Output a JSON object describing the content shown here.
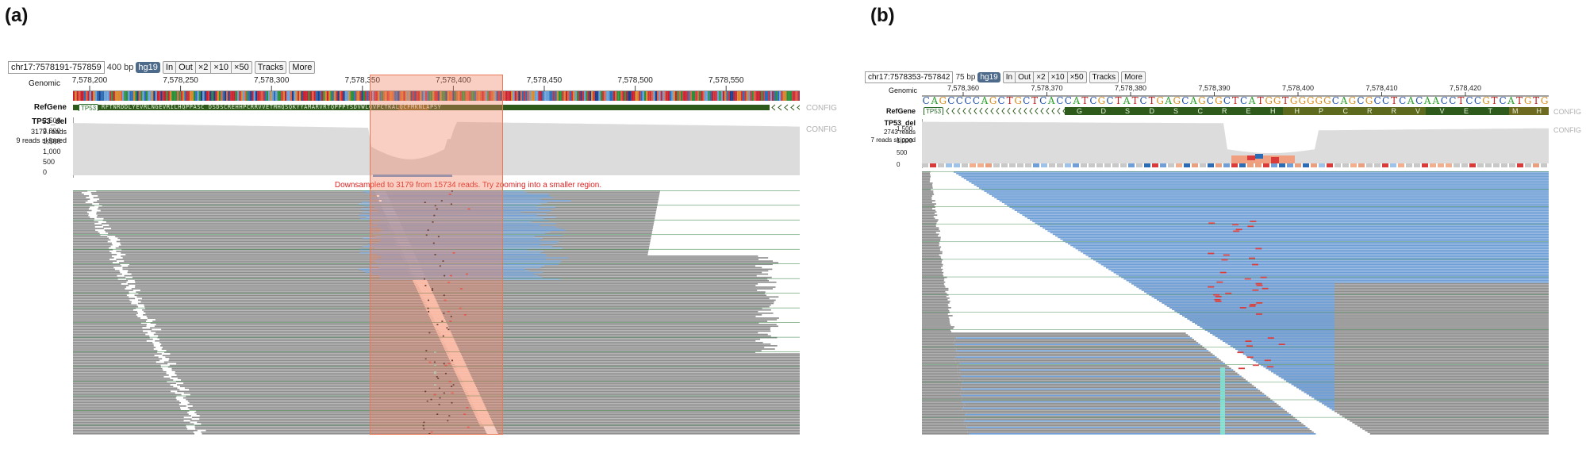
{
  "panels": [
    {
      "label": "(a)",
      "locus": "chr17:7578191-757859",
      "bp": "400 bp",
      "genome": "hg19",
      "buttons": {
        "in": "In",
        "out": "Out",
        "x2": "×2",
        "x10": "×10",
        "x50": "×50",
        "tracks": "Tracks",
        "more": "More"
      },
      "ruler": {
        "title": "Genomic",
        "ticks": [
          "7,578,200",
          "7,578,250",
          "7,578,300",
          "7,578,350",
          "7,578,400",
          "7,578,450",
          "7,578,500",
          "7,578,550"
        ]
      },
      "refgene": {
        "name": "RefGene",
        "gene": "TP53",
        "config": "CONFIG",
        "aa": "RFTNRDDLYEVRLNGEVRILHQPPASC DSDSCREHHPCRRVVETMHQSQKYYAMARVRTQPPPTSDVWLQVPCTKALQCFMKNLAPSY"
      },
      "alignment": {
        "name": "TP53_del",
        "reads": "3179 reads",
        "skipped": "9 reads skipped",
        "config": "CONFIG",
        "yticks": [
          "2,500",
          "2,000",
          "1,500",
          "1,000",
          "500",
          "0"
        ],
        "coverage_max": 2600,
        "warning": "Downsampled to 3179 from 15734 reads. Try zooming into a smaller region."
      }
    },
    {
      "label": "(b)",
      "locus": "chr17:7578353-757842",
      "bp": "75 bp",
      "genome": "hg19",
      "buttons": {
        "in": "In",
        "out": "Out",
        "x2": "×2",
        "x10": "×10",
        "x50": "×50",
        "tracks": "Tracks",
        "more": "More"
      },
      "ruler": {
        "title": "Genomic",
        "ticks": [
          "7,578,360",
          "7,578,370",
          "7,578,380",
          "7,578,390",
          "7,578,400",
          "7,578,410",
          "7,578,420"
        ]
      },
      "sequence": "CAGCCCCAGCTGCTCACCATCGCTATCTGAGCAGCGCTCATGGTGGGGGCAGCGCCTCACAACCTCCGTCATGTG",
      "refgene": {
        "name": "RefGene",
        "gene": "TP53",
        "config": "CONFIG",
        "aa": [
          "G",
          "D",
          "S",
          "D",
          "S",
          "C",
          "R",
          "E",
          "H",
          "H",
          "P",
          "C",
          "R",
          "R",
          "V",
          "V",
          "E",
          "T",
          "M",
          "H"
        ]
      },
      "alignment": {
        "name": "TP53_del",
        "reads": "2743 reads",
        "skipped": "7 reads skipped",
        "config": "CONFIG",
        "yticks": [
          "1,500",
          "1,000",
          "500",
          "0"
        ],
        "coverage_max": 1750
      }
    }
  ],
  "colors": {
    "read_gray": "#8e8e8e",
    "read_blue": "#6f9fd6",
    "mismatch_red": "#d93a3a",
    "highlight": "#f08060",
    "coverage": "#dcdcdc",
    "gene_green": "#2e5b1c",
    "base_A": "#2ca02c",
    "base_C": "#1f4ea8",
    "base_G": "#d98b1a",
    "base_T": "#c02020"
  }
}
